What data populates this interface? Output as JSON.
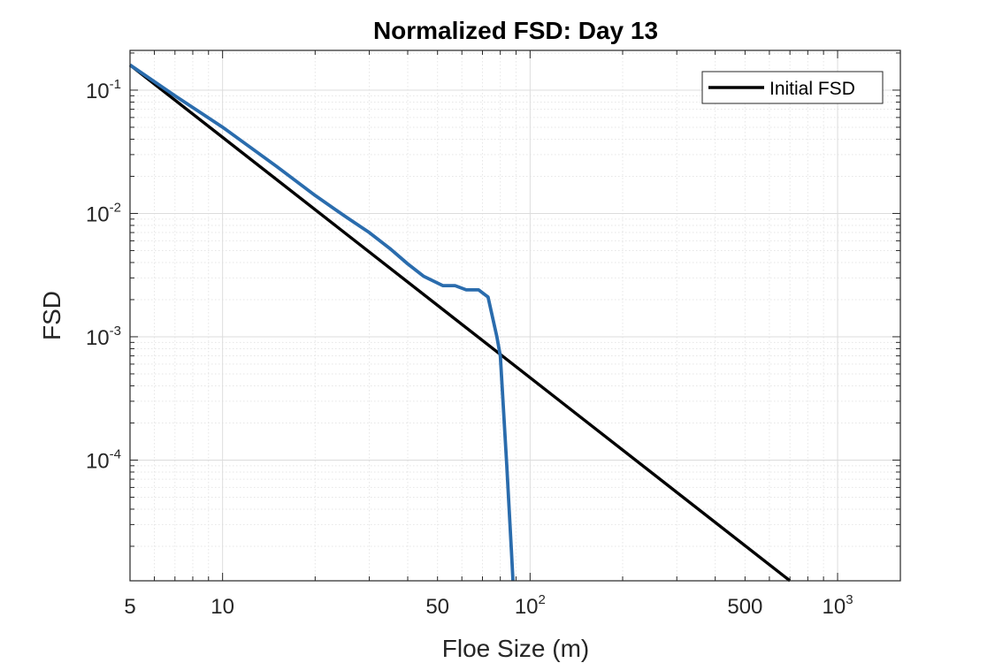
{
  "chart_data": {
    "type": "line",
    "title": "Normalized FSD: Day 13",
    "xlabel": "Floe Size (m)",
    "ylabel": "FSD",
    "x_scale": "log",
    "y_scale": "log",
    "xlim": [
      5,
      1600
    ],
    "ylim": [
      1.05e-05,
      0.21
    ],
    "grid": true,
    "minor_grid": true,
    "legend_position": "top-right",
    "x_ticks": [
      {
        "value": 5,
        "label": "5"
      },
      {
        "value": 10,
        "label": "10"
      },
      {
        "value": 50,
        "label": "50"
      },
      {
        "value": 100,
        "base": "10",
        "exp": "2"
      },
      {
        "value": 500,
        "label": "500"
      },
      {
        "value": 1000,
        "base": "10",
        "exp": "3"
      }
    ],
    "y_ticks": [
      {
        "value": 0.1,
        "base": "10",
        "exp": "-1"
      },
      {
        "value": 0.01,
        "base": "10",
        "exp": "-2"
      },
      {
        "value": 0.001,
        "base": "10",
        "exp": "-3"
      },
      {
        "value": 0.0001,
        "base": "10",
        "exp": "-4"
      }
    ],
    "series": [
      {
        "name": "Initial FSD",
        "color": "#000000",
        "in_legend": true,
        "points": [
          [
            5,
            0.16
          ],
          [
            700,
            1.05e-05
          ]
        ]
      },
      {
        "color": "#2a6cad",
        "in_legend": false,
        "points": [
          [
            5,
            0.16
          ],
          [
            7,
            0.09
          ],
          [
            10,
            0.05
          ],
          [
            15,
            0.024
          ],
          [
            20,
            0.014
          ],
          [
            25,
            0.0095
          ],
          [
            30,
            0.007
          ],
          [
            35,
            0.0052
          ],
          [
            40,
            0.0039
          ],
          [
            45,
            0.0031
          ],
          [
            52,
            0.0026
          ],
          [
            57,
            0.0026
          ],
          [
            62,
            0.0024
          ],
          [
            68,
            0.0024
          ],
          [
            73,
            0.0021
          ],
          [
            78,
            0.001
          ],
          [
            80,
            0.0007
          ],
          [
            84,
            9e-05
          ],
          [
            87,
            1.8e-05
          ],
          [
            88,
            1.05e-05
          ]
        ]
      }
    ]
  }
}
